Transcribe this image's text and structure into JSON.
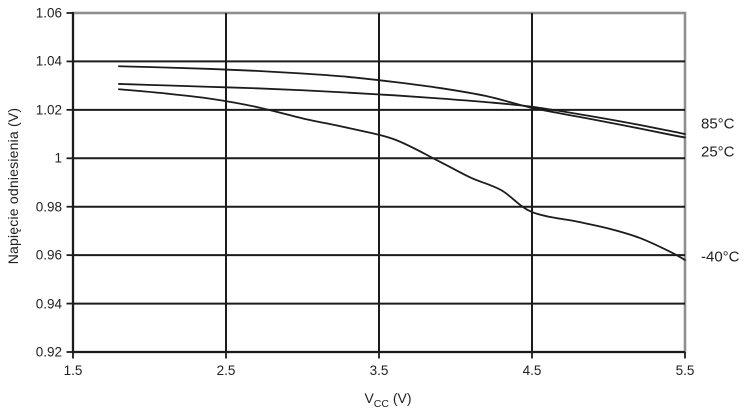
{
  "chart_data": {
    "type": "line",
    "title": "",
    "xlabel": "VCC (V)",
    "xlabel_parts": {
      "pre": "V",
      "sub": "CC",
      "post": " (V)"
    },
    "ylabel": "Napięcie odniesienia (V)",
    "xlim": [
      1.5,
      5.5
    ],
    "ylim": [
      0.92,
      1.06
    ],
    "x_ticks": [
      {
        "v": 1.5,
        "label": "1.5"
      },
      {
        "v": 2.5,
        "label": "2.5"
      },
      {
        "v": 3.5,
        "label": "3.5"
      },
      {
        "v": 4.5,
        "label": "4.5"
      },
      {
        "v": 5.5,
        "label": "5.5"
      }
    ],
    "y_ticks": [
      {
        "v": 1.06,
        "label": "1.06"
      },
      {
        "v": 1.04,
        "label": "1.04"
      },
      {
        "v": 1.02,
        "label": "1.02"
      },
      {
        "v": 1.0,
        "label": "1"
      },
      {
        "v": 0.98,
        "label": "0.98"
      },
      {
        "v": 0.96,
        "label": "0.96"
      },
      {
        "v": 0.94,
        "label": "0.94"
      },
      {
        "v": 0.92,
        "label": "0.92"
      }
    ],
    "grid": "on",
    "legend_position": "right-outside",
    "series": [
      {
        "name": "85°C",
        "x": [
          1.8,
          2.1,
          2.4,
          2.7,
          3.0,
          3.3,
          3.6,
          3.9,
          4.2,
          4.5,
          4.8,
          5.1,
          5.4,
          5.5
        ],
        "y": [
          1.0307,
          1.0301,
          1.0295,
          1.0289,
          1.0281,
          1.0271,
          1.026,
          1.0247,
          1.0232,
          1.0213,
          1.0183,
          1.015,
          1.0113,
          1.01
        ]
      },
      {
        "name": "25°C",
        "x": [
          1.8,
          2.1,
          2.4,
          2.7,
          3.0,
          3.3,
          3.6,
          3.9,
          4.2,
          4.5,
          4.8,
          5.1,
          5.4,
          5.5
        ],
        "y": [
          1.038,
          1.0375,
          1.0369,
          1.0361,
          1.035,
          1.0336,
          1.0315,
          1.029,
          1.0257,
          1.0208,
          1.0172,
          1.0136,
          1.0098,
          1.0086
        ]
      },
      {
        "name": "-40°C",
        "x": [
          1.8,
          2.1,
          2.4,
          2.7,
          3.0,
          3.3,
          3.6,
          3.9,
          4.1,
          4.3,
          4.5,
          4.8,
          5.0,
          5.2,
          5.4,
          5.5
        ],
        "y": [
          1.0285,
          1.0268,
          1.0246,
          1.0212,
          1.0165,
          1.0125,
          1.0078,
          0.9985,
          0.992,
          0.9868,
          0.9778,
          0.9738,
          0.971,
          0.9672,
          0.9615,
          0.958
        ]
      }
    ],
    "colors": {
      "line": "#1c1c1c",
      "gridline": "#1c1c1c",
      "plot_border": "#8f8f8f",
      "text": "#1f1f1f",
      "background": "#ffffff"
    }
  }
}
